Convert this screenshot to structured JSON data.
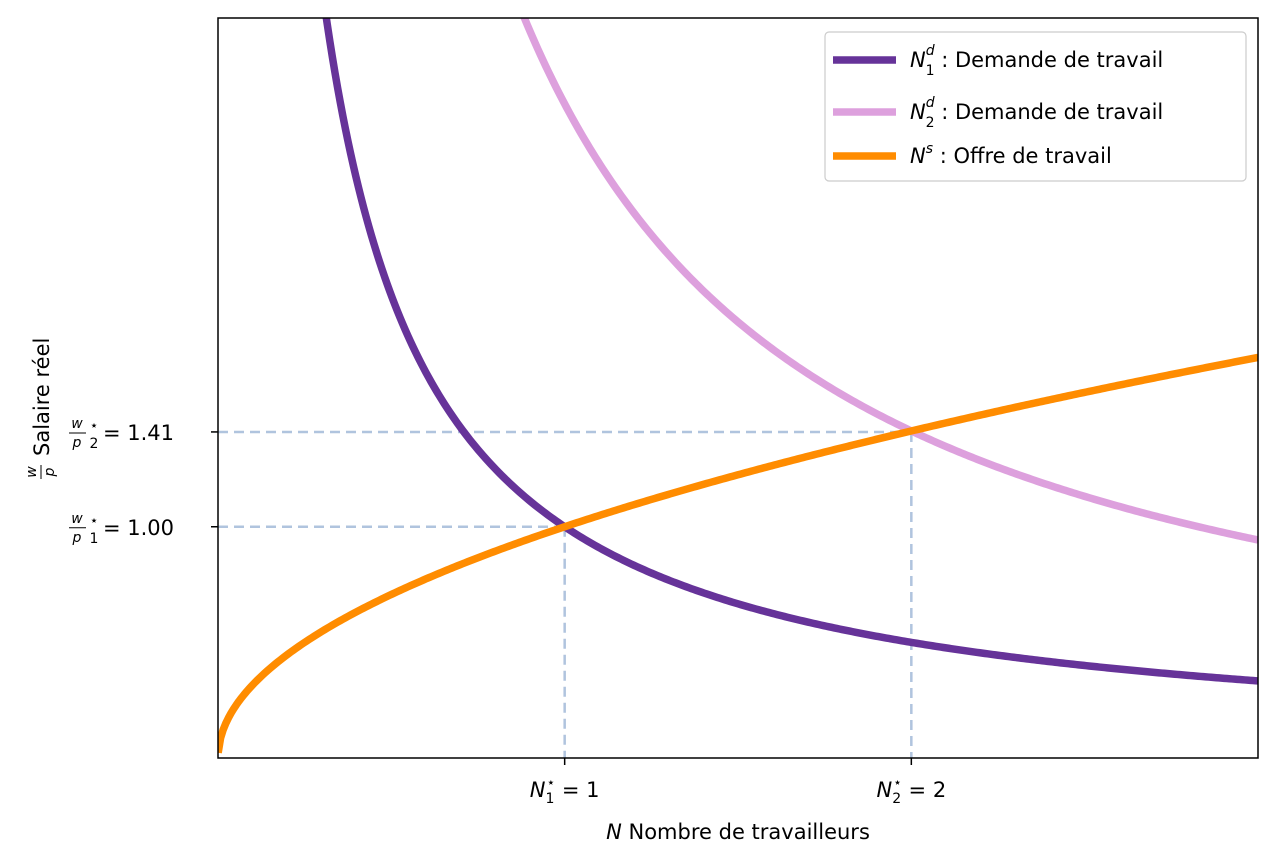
{
  "chart_data": {
    "type": "line",
    "xlabel_var": "N",
    "xlabel_text": " Nombre de travailleurs",
    "ylabel_frac_num": "w",
    "ylabel_frac_den": "p",
    "ylabel_text": "Salaire réel",
    "xlim": [
      0,
      3.0
    ],
    "ylim": [
      0,
      3.2
    ],
    "grid": false,
    "legend_position": "top-right",
    "series": [
      {
        "key": "nd1",
        "name": "N₁ᵈ : Demande de travail",
        "legend_main": "N",
        "legend_sub": "1",
        "legend_sup": "d",
        "legend_text": " : Demande de travail",
        "function": "1/x",
        "color": "#663399"
      },
      {
        "key": "nd2",
        "name": "N₂ᵈ : Demande de travail",
        "legend_main": "N",
        "legend_sub": "2",
        "legend_sup": "d",
        "legend_text": " : Demande de travail",
        "function": "2*sqrt(2)/x",
        "color": "#dda0dd"
      },
      {
        "key": "ns",
        "name": "Nˢ : Offre de travail",
        "legend_main": "N",
        "legend_sub": "",
        "legend_sup": "s",
        "legend_text": " : Offre de travail",
        "function": "sqrt(x)",
        "color": "#ff8c00"
      }
    ],
    "equilibria": [
      {
        "x": 1,
        "y": 1.0
      },
      {
        "x": 2,
        "y": 1.41
      }
    ],
    "guide_color": "#b0c4de",
    "x_ticks": [
      {
        "value": 1,
        "main": "N",
        "sub": "1",
        "sup": "⋆",
        "rest": " = 1"
      },
      {
        "value": 2,
        "main": "N",
        "sub": "2",
        "sup": "⋆",
        "rest": " = 2"
      }
    ],
    "y_ticks": [
      {
        "value": 1.0,
        "frac_num": "w",
        "frac_den": "p",
        "sub": "1",
        "sup": "⋆",
        "rest": " = 1.00"
      },
      {
        "value": 1.41,
        "frac_num": "w",
        "frac_den": "p",
        "sub": "2",
        "sup": "⋆",
        "rest": " = 1.41"
      }
    ]
  }
}
